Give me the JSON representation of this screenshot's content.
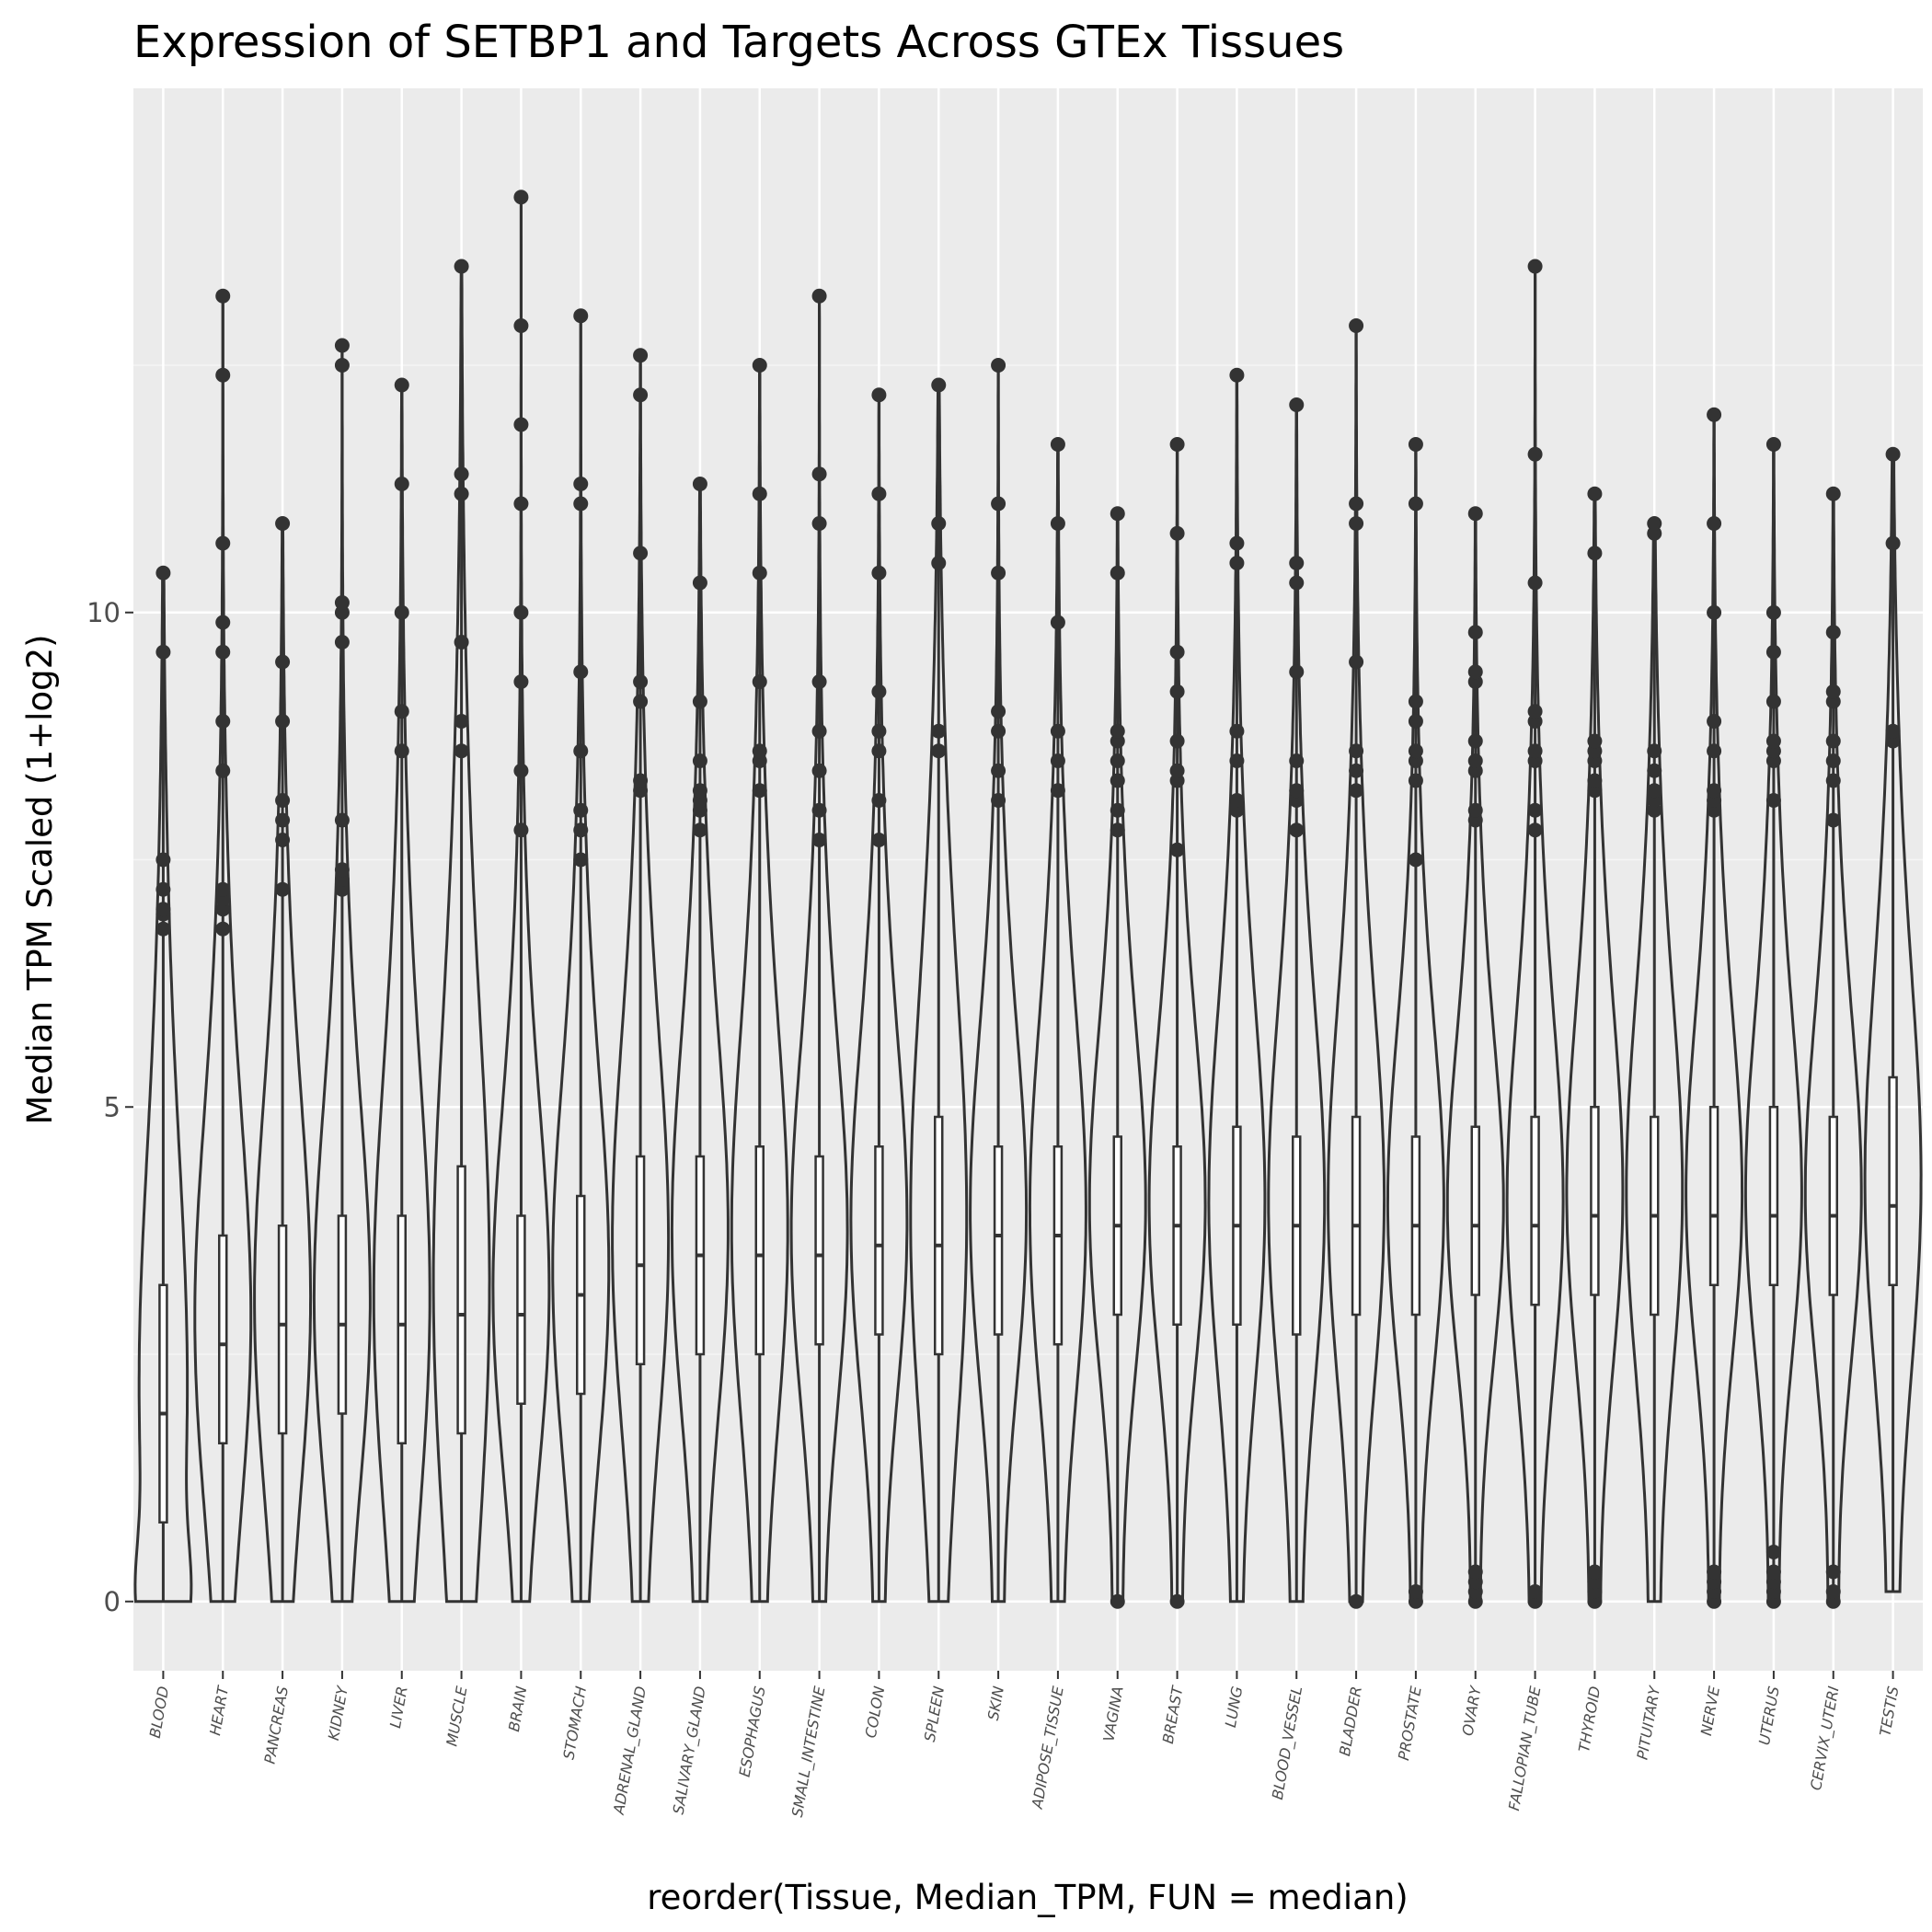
{
  "chart_data": {
    "type": "violin",
    "title": "Expression of SETBP1 and Targets Across GTEx Tissues",
    "xlabel": "reorder(Tissue, Median_TPM, FUN = median)",
    "ylabel": "Median TPM Scaled (1+log2)",
    "ylim": [
      -0.7,
      15.3
    ],
    "yticks": [
      0,
      5,
      10
    ],
    "grid": true,
    "categories": [
      "BLOOD",
      "HEART",
      "PANCREAS",
      "KIDNEY",
      "LIVER",
      "MUSCLE",
      "BRAIN",
      "STOMACH",
      "ADRENAL_GLAND",
      "SALIVARY_GLAND",
      "ESOPHAGUS",
      "SMALL_INTESTINE",
      "COLON",
      "SPLEEN",
      "SKIN",
      "ADIPOSE_TISSUE",
      "VAGINA",
      "BREAST",
      "LUNG",
      "BLOOD_VESSEL",
      "BLADDER",
      "PROSTATE",
      "OVARY",
      "FALLOPIAN_TUBE",
      "THYROID",
      "PITUITARY",
      "NERVE",
      "UTERUS",
      "CERVIX_UTERI",
      "TESTIS"
    ],
    "tissues": [
      {
        "name": "BLOOD",
        "median": 1.9,
        "q1": 0.8,
        "q3": 3.2,
        "wlo": 0,
        "whi": 6.8,
        "max": 10.4,
        "outliers": [
          6.8,
          6.95,
          7.0,
          7.2,
          7.5,
          9.6,
          10.4
        ]
      },
      {
        "name": "HEART",
        "median": 2.6,
        "q1": 1.6,
        "q3": 3.7,
        "wlo": 0,
        "whi": 6.8,
        "max": 13.2,
        "outliers": [
          6.8,
          7.0,
          7.1,
          7.2,
          8.4,
          8.9,
          9.6,
          9.9,
          10.7,
          12.4,
          13.2
        ]
      },
      {
        "name": "PANCREAS",
        "median": 2.8,
        "q1": 1.7,
        "q3": 3.8,
        "wlo": 0,
        "whi": 7.2,
        "max": 10.9,
        "outliers": [
          7.2,
          7.7,
          7.9,
          8.1,
          8.9,
          9.5,
          10.9
        ]
      },
      {
        "name": "KIDNEY",
        "median": 2.8,
        "q1": 1.9,
        "q3": 3.9,
        "wlo": 0,
        "whi": 7.2,
        "max": 12.7,
        "outliers": [
          7.2,
          7.3,
          7.4,
          7.9,
          9.7,
          10.0,
          10.1,
          12.5,
          12.7
        ]
      },
      {
        "name": "LIVER",
        "median": 2.8,
        "q1": 1.6,
        "q3": 3.9,
        "wlo": 0,
        "whi": 8.6,
        "max": 12.3,
        "outliers": [
          8.6,
          9.0,
          10.0,
          11.3,
          12.3
        ]
      },
      {
        "name": "MUSCLE",
        "median": 2.9,
        "q1": 1.7,
        "q3": 4.4,
        "wlo": 0,
        "whi": 8.6,
        "max": 13.5,
        "outliers": [
          8.6,
          8.9,
          9.7,
          11.2,
          11.4,
          13.5
        ]
      },
      {
        "name": "BRAIN",
        "median": 2.9,
        "q1": 2.0,
        "q3": 3.9,
        "wlo": 0,
        "whi": 7.8,
        "max": 14.2,
        "outliers": [
          7.8,
          8.4,
          9.3,
          10.0,
          11.1,
          11.9,
          12.9,
          14.2
        ]
      },
      {
        "name": "STOMACH",
        "median": 3.1,
        "q1": 2.1,
        "q3": 4.1,
        "wlo": 0,
        "whi": 7.5,
        "max": 13.0,
        "outliers": [
          7.5,
          7.8,
          8.0,
          8.6,
          9.4,
          11.1,
          11.3,
          13.0
        ]
      },
      {
        "name": "ADRENAL_GLAND",
        "median": 3.4,
        "q1": 2.4,
        "q3": 4.5,
        "wlo": 0,
        "whi": 8.2,
        "max": 12.6,
        "outliers": [
          8.2,
          8.3,
          9.1,
          9.3,
          10.6,
          12.2,
          12.6
        ]
      },
      {
        "name": "SALIVARY_GLAND",
        "median": 3.5,
        "q1": 2.5,
        "q3": 4.5,
        "wlo": 0,
        "whi": 7.8,
        "max": 11.3,
        "outliers": [
          7.8,
          8.0,
          8.1,
          8.2,
          8.5,
          9.1,
          10.3,
          11.3
        ]
      },
      {
        "name": "ESOPHAGUS",
        "median": 3.5,
        "q1": 2.5,
        "q3": 4.6,
        "wlo": 0,
        "whi": 8.2,
        "max": 12.5,
        "outliers": [
          8.2,
          8.5,
          8.6,
          9.3,
          10.4,
          11.2,
          12.5
        ]
      },
      {
        "name": "SMALL_INTESTINE",
        "median": 3.5,
        "q1": 2.6,
        "q3": 4.5,
        "wlo": 0,
        "whi": 7.7,
        "max": 13.2,
        "outliers": [
          7.7,
          8.0,
          8.4,
          8.8,
          9.3,
          10.9,
          11.4,
          13.2
        ]
      },
      {
        "name": "COLON",
        "median": 3.6,
        "q1": 2.7,
        "q3": 4.6,
        "wlo": 0,
        "whi": 7.7,
        "max": 12.2,
        "outliers": [
          7.7,
          8.1,
          8.6,
          8.8,
          9.2,
          10.4,
          11.2,
          12.2
        ]
      },
      {
        "name": "SPLEEN",
        "median": 3.6,
        "q1": 2.5,
        "q3": 4.9,
        "wlo": 0,
        "whi": 8.6,
        "max": 12.3,
        "outliers": [
          8.6,
          8.8,
          10.5,
          10.9,
          12.3
        ]
      },
      {
        "name": "SKIN",
        "median": 3.7,
        "q1": 2.7,
        "q3": 4.6,
        "wlo": 0,
        "whi": 8.1,
        "max": 12.5,
        "outliers": [
          8.1,
          8.4,
          8.8,
          9.0,
          10.4,
          11.1,
          12.5
        ]
      },
      {
        "name": "ADIPOSE_TISSUE",
        "median": 3.7,
        "q1": 2.6,
        "q3": 4.6,
        "wlo": 0,
        "whi": 8.2,
        "max": 11.7,
        "outliers": [
          8.2,
          8.5,
          8.8,
          9.9,
          10.9,
          11.7
        ]
      },
      {
        "name": "VAGINA",
        "median": 3.8,
        "q1": 2.9,
        "q3": 4.7,
        "wlo": 0,
        "whi": 7.8,
        "max": 11.0,
        "outliers": [
          0,
          7.8,
          8.0,
          8.3,
          8.5,
          8.7,
          8.8,
          10.4,
          11.0
        ]
      },
      {
        "name": "BREAST",
        "median": 3.8,
        "q1": 2.8,
        "q3": 4.6,
        "wlo": 0,
        "whi": 7.6,
        "max": 11.7,
        "outliers": [
          0,
          7.6,
          8.3,
          8.4,
          8.7,
          9.2,
          9.6,
          10.8,
          11.7
        ]
      },
      {
        "name": "LUNG",
        "median": 3.8,
        "q1": 2.8,
        "q3": 4.8,
        "wlo": 0,
        "whi": 8.0,
        "max": 12.4,
        "outliers": [
          8.0,
          8.1,
          8.5,
          8.8,
          10.5,
          10.7,
          12.4
        ]
      },
      {
        "name": "BLOOD_VESSEL",
        "median": 3.8,
        "q1": 2.7,
        "q3": 4.7,
        "wlo": 0,
        "whi": 7.8,
        "max": 12.1,
        "outliers": [
          7.8,
          8.1,
          8.2,
          8.5,
          9.4,
          10.3,
          10.5,
          12.1
        ]
      },
      {
        "name": "BLADDER",
        "median": 3.8,
        "q1": 2.9,
        "q3": 4.9,
        "wlo": 0,
        "whi": 8.2,
        "max": 12.9,
        "outliers": [
          0,
          8.2,
          8.4,
          8.6,
          9.5,
          10.9,
          11.1,
          12.9
        ]
      },
      {
        "name": "PROSTATE",
        "median": 3.8,
        "q1": 2.9,
        "q3": 4.7,
        "wlo": 0,
        "whi": 7.5,
        "max": 11.7,
        "outliers": [
          0,
          0.1,
          7.5,
          8.3,
          8.5,
          8.6,
          8.9,
          9.1,
          11.1,
          11.7
        ]
      },
      {
        "name": "OVARY",
        "median": 3.8,
        "q1": 3.1,
        "q3": 4.8,
        "wlo": 0,
        "whi": 7.9,
        "max": 11.0,
        "outliers": [
          0,
          0.1,
          0.2,
          0.3,
          7.9,
          8.0,
          8.4,
          8.5,
          8.7,
          9.3,
          9.4,
          9.8,
          11.0
        ]
      },
      {
        "name": "FALLOPIAN_TUBE",
        "median": 3.8,
        "q1": 3.0,
        "q3": 4.9,
        "wlo": 0,
        "whi": 7.8,
        "max": 13.5,
        "outliers": [
          0,
          0.1,
          7.8,
          8.0,
          8.5,
          8.6,
          8.9,
          9.0,
          10.3,
          11.6,
          13.5
        ]
      },
      {
        "name": "THYROID",
        "median": 3.9,
        "q1": 3.1,
        "q3": 5.0,
        "wlo": 0,
        "whi": 8.2,
        "max": 11.2,
        "outliers": [
          0,
          0.1,
          0.2,
          0.3,
          8.2,
          8.3,
          8.5,
          8.6,
          8.7,
          10.6,
          11.2
        ]
      },
      {
        "name": "PITUITARY",
        "median": 3.9,
        "q1": 2.9,
        "q3": 4.9,
        "wlo": 0,
        "whi": 8.0,
        "max": 10.9,
        "outliers": [
          8.0,
          8.1,
          8.2,
          8.4,
          8.6,
          10.8,
          10.9
        ]
      },
      {
        "name": "NERVE",
        "median": 3.9,
        "q1": 3.2,
        "q3": 5.0,
        "wlo": 0,
        "whi": 8.0,
        "max": 12.0,
        "outliers": [
          0,
          0.1,
          0.2,
          0.3,
          8.0,
          8.1,
          8.2,
          8.6,
          8.9,
          10.0,
          10.9,
          12.0
        ]
      },
      {
        "name": "UTERUS",
        "median": 3.9,
        "q1": 3.2,
        "q3": 5.0,
        "wlo": 0,
        "whi": 8.1,
        "max": 11.7,
        "outliers": [
          0,
          0.1,
          0.2,
          0.3,
          0.5,
          8.1,
          8.5,
          8.6,
          8.7,
          9.1,
          9.6,
          10.0,
          11.7
        ]
      },
      {
        "name": "CERVIX_UTERI",
        "median": 3.9,
        "q1": 3.1,
        "q3": 4.9,
        "wlo": 0,
        "whi": 7.9,
        "max": 11.2,
        "outliers": [
          0,
          0.1,
          0.3,
          7.9,
          8.3,
          8.5,
          8.7,
          9.1,
          9.2,
          9.8,
          11.2
        ]
      },
      {
        "name": "TESTIS",
        "median": 4.0,
        "q1": 3.2,
        "q3": 5.3,
        "wlo": 0.1,
        "whi": 8.8,
        "max": 11.6,
        "outliers": [
          8.7,
          8.8,
          10.7,
          11.6
        ]
      }
    ]
  }
}
